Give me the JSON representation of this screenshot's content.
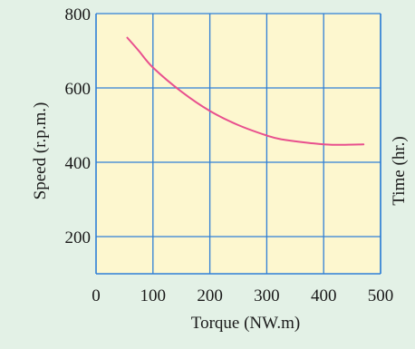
{
  "chart_data": {
    "type": "line",
    "title": "",
    "xlabel": "Torque (NW.m)",
    "ylabel": "Speed (r.p.m.)",
    "y2label": "Time (hr.)",
    "xlim": [
      0,
      500
    ],
    "ylim": [
      100,
      800
    ],
    "xticks": [
      0,
      100,
      200,
      300,
      400,
      500
    ],
    "yticks": [
      200,
      400,
      600,
      800
    ],
    "grid": true,
    "legend": "none",
    "series": [
      {
        "color": "#e8508e",
        "x": [
          55,
          75,
          100,
          150,
          200,
          250,
          300,
          325,
          375,
          415,
          470
        ],
        "y": [
          735,
          700,
          655,
          590,
          538,
          500,
          472,
          462,
          452,
          447,
          448
        ]
      }
    ]
  },
  "colors": {
    "page_background": "#e3f1e6",
    "plot_background": "#fdf7cf",
    "grid": "#2f7fd6",
    "text": "#1a1a1a"
  }
}
